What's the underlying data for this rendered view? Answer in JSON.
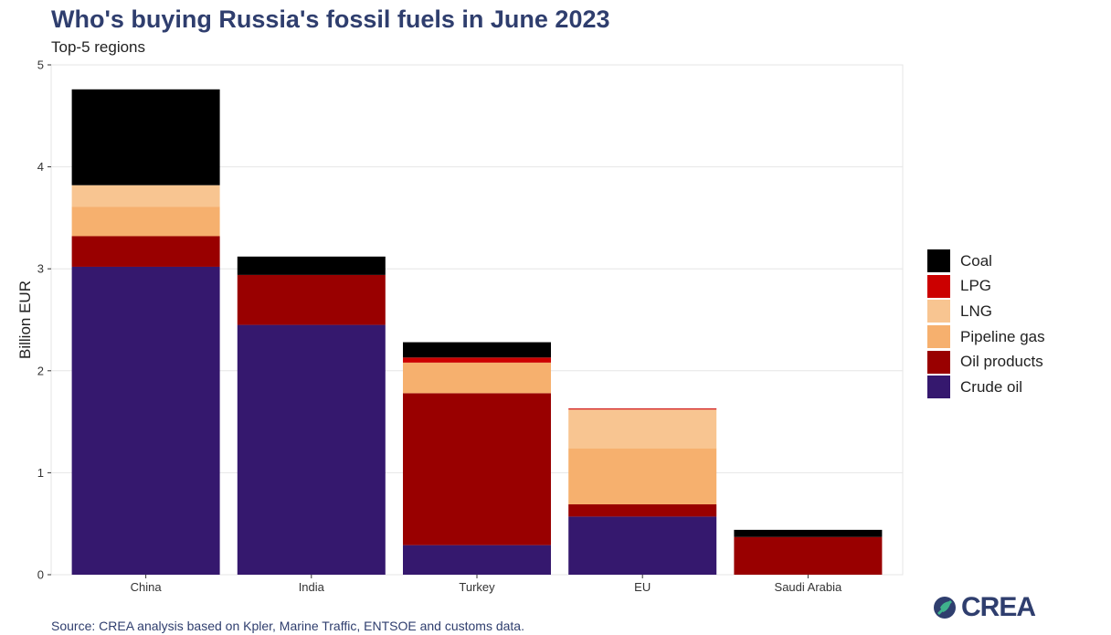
{
  "header": {
    "title": "Who's buying Russia's fossil fuels in June 2023",
    "subtitle": "Top-5 regions"
  },
  "footer": {
    "source": "Source: CREA analysis based on Kpler, Marine Traffic, ENTSOE and customs data.",
    "logo_text": "CREA",
    "logo_icon": "crea-leaf-icon"
  },
  "chart_data": {
    "type": "bar",
    "stacked": true,
    "title": "Who's buying Russia's fossil fuels in June 2023",
    "subtitle": "Top-5 regions",
    "xlabel": "",
    "ylabel": "Billion EUR",
    "ylim": [
      0,
      5
    ],
    "yticks": [
      0,
      1,
      2,
      3,
      4,
      5
    ],
    "grid": true,
    "legend_position": "right",
    "categories": [
      "China",
      "India",
      "Turkey",
      "EU",
      "Saudi Arabia"
    ],
    "series": [
      {
        "name": "Crude oil",
        "color": "#35186e",
        "values": [
          3.02,
          2.45,
          0.29,
          0.57,
          0.0
        ]
      },
      {
        "name": "Oil products",
        "color": "#990000",
        "values": [
          0.3,
          0.49,
          1.49,
          0.12,
          0.37
        ]
      },
      {
        "name": "Pipeline gas",
        "color": "#f6b06e",
        "values": [
          0.29,
          0.0,
          0.3,
          0.55,
          0.0
        ]
      },
      {
        "name": "LNG",
        "color": "#f8c591",
        "values": [
          0.21,
          0.0,
          0.0,
          0.38,
          0.0
        ]
      },
      {
        "name": "LPG",
        "color": "#cc0000",
        "values": [
          0.0,
          0.0,
          0.05,
          0.01,
          0.0
        ]
      },
      {
        "name": "Coal",
        "color": "#000000",
        "values": [
          0.94,
          0.18,
          0.15,
          0.0,
          0.07
        ]
      }
    ],
    "legend_order": [
      "Coal",
      "LPG",
      "LNG",
      "Pipeline gas",
      "Oil products",
      "Crude oil"
    ]
  }
}
